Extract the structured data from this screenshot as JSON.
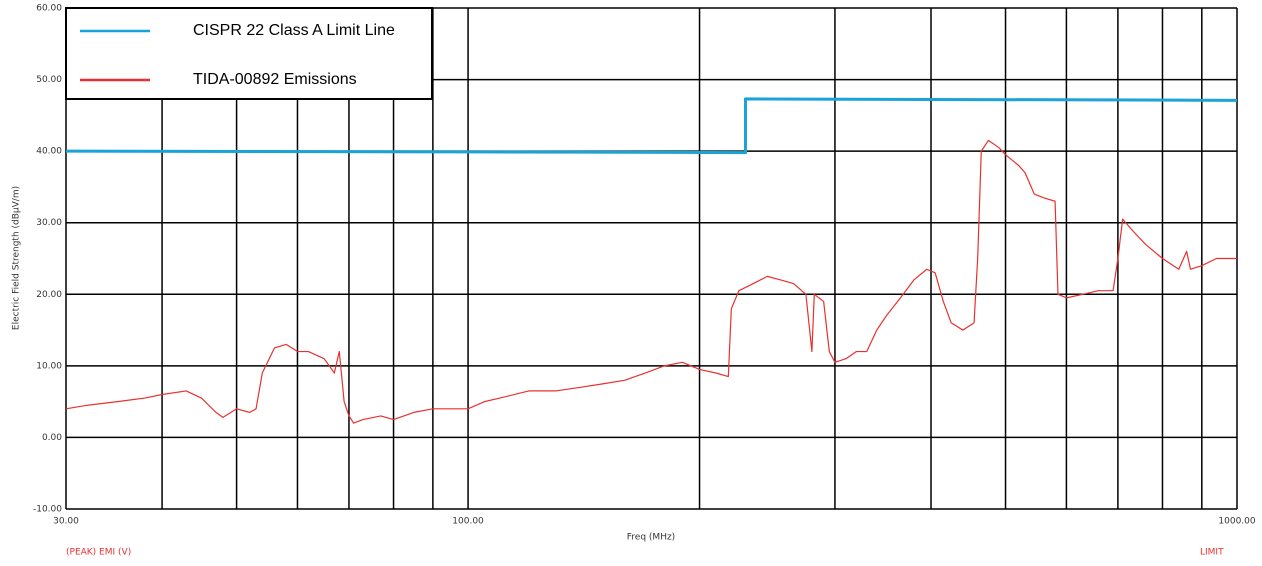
{
  "chart_data": {
    "type": "line",
    "x_label": "Freq (MHz)",
    "y_label": "Electric Field Strength (dBµV/m)",
    "footer_left": "(PEAK) EMI (V)",
    "footer_right": "LIMIT",
    "log_x": true,
    "grid": true,
    "xlim": [
      30,
      1000
    ],
    "xticks": [
      {
        "value": 30,
        "label": "30.00"
      },
      {
        "value": 100,
        "label": "100.00"
      },
      {
        "value": 1000,
        "label": "1000.00"
      }
    ],
    "xgrid": [
      40,
      50,
      60,
      70,
      80,
      90,
      200,
      300,
      400,
      500,
      600,
      700,
      800,
      900
    ],
    "ylim": [
      -10,
      60
    ],
    "yticks": [
      {
        "value": -10,
        "label": "-10.00"
      },
      {
        "value": 0,
        "label": "0.00"
      },
      {
        "value": 10,
        "label": "10.00"
      },
      {
        "value": 20,
        "label": "20.00"
      },
      {
        "value": 30,
        "label": "30.00"
      },
      {
        "value": 40,
        "label": "40.00"
      },
      {
        "value": 50,
        "label": "50.00"
      },
      {
        "value": 60,
        "label": "60.00"
      }
    ],
    "legend": "upper left",
    "series": [
      {
        "name": "CISPR 22 Class A Limit Line",
        "color": "#1aa3d9",
        "x": [
          30,
          100,
          229.5,
          229.5,
          1000
        ],
        "values": [
          40,
          39.9,
          39.8,
          47.3,
          47.1
        ]
      },
      {
        "name": "TIDA-00892 Emissions",
        "color": "#e8312f",
        "x": [
          30,
          32,
          35,
          38,
          40,
          43,
          45,
          47,
          48,
          50,
          52,
          53,
          54,
          56,
          58,
          60,
          62,
          65,
          67,
          68,
          69,
          70,
          71,
          73,
          77,
          80,
          85,
          90,
          95,
          100,
          105,
          110,
          120,
          130,
          140,
          150,
          160,
          170,
          180,
          190,
          200,
          210,
          218,
          220,
          225,
          235,
          245,
          255,
          265,
          275,
          280,
          282,
          290,
          295,
          300,
          310,
          320,
          330,
          340,
          350,
          365,
          380,
          395,
          405,
          415,
          425,
          440,
          455,
          460,
          465,
          475,
          490,
          500,
          520,
          530,
          545,
          560,
          580,
          585,
          600,
          630,
          660,
          690,
          700,
          710,
          730,
          760,
          800,
          840,
          860,
          870,
          900,
          940,
          980,
          1000
        ],
        "values": [
          4,
          4.5,
          5,
          5.5,
          6,
          6.5,
          5.5,
          3.5,
          2.8,
          4,
          3.5,
          4,
          9,
          12.5,
          13,
          12,
          12,
          11,
          9,
          12,
          5,
          3,
          2,
          2.5,
          3,
          2.5,
          3.5,
          4,
          4,
          4,
          5,
          5.5,
          6.5,
          6.5,
          7,
          7.5,
          8,
          9,
          10,
          10.5,
          9.5,
          9,
          8.5,
          18,
          20.5,
          21.5,
          22.5,
          22,
          21.5,
          20,
          12,
          20,
          19,
          12,
          10.5,
          11,
          12,
          12,
          15,
          17,
          19.5,
          22,
          23.5,
          23,
          19,
          16,
          15,
          16,
          25,
          40,
          41.5,
          40.5,
          39.5,
          38,
          37,
          34,
          33.5,
          33,
          20,
          19.5,
          20,
          20.5,
          20.5,
          25,
          30.5,
          29,
          27,
          25,
          23.5,
          26,
          23.5,
          24,
          25,
          25,
          25
        ]
      }
    ]
  }
}
